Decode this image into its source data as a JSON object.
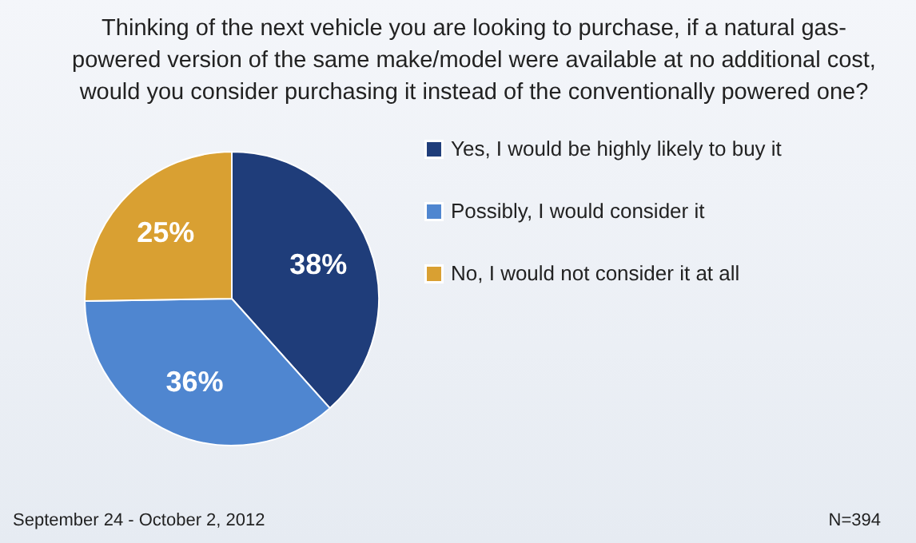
{
  "chart_data": {
    "type": "pie",
    "title": "Thinking of the next vehicle you are looking to purchase, if a natural gas-powered version of the same make/model  were available at no additional cost,  would you consider purchasing it instead of the conventionally powered one?",
    "categories": [
      "Yes, I would be highly likely to buy it",
      "Possibly, I would consider it",
      "No, I would not consider it at all"
    ],
    "values": [
      38,
      36,
      25
    ],
    "colors": [
      "#1f3d7a",
      "#4f86d0",
      "#d9a032"
    ],
    "value_labels": [
      "38%",
      "36%",
      "25%"
    ],
    "legend": "right",
    "annotations": [
      "September 24 - October 2, 2012",
      "N=394"
    ]
  }
}
